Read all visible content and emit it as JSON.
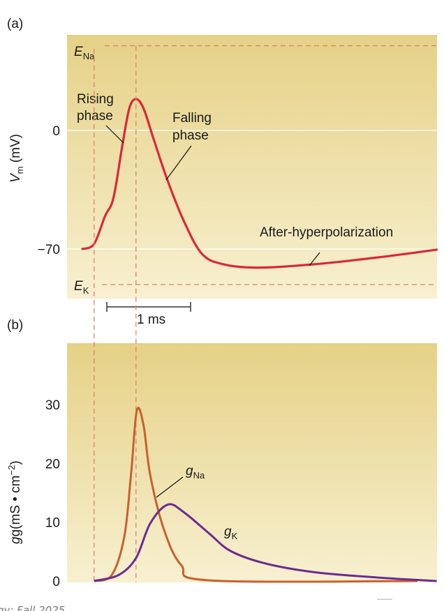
{
  "chart_data": [
    {
      "panel_label": "(a)",
      "type": "line",
      "ylabel": "V",
      "ylabel_sub": "m",
      "ylabel_unit": " (mV)",
      "yticks": [
        {
          "value": 0,
          "label": "0"
        },
        {
          "value": -70,
          "label": "−70"
        }
      ],
      "ylim": [
        -95,
        57
      ],
      "xlim_ms": [
        -0.18,
        4.23
      ],
      "grid": "horizontal at tick values",
      "reference_lines": [
        {
          "label": "E",
          "sub": "Na",
          "value": 50
        },
        {
          "label": "E",
          "sub": "K",
          "value": -91
        }
      ],
      "vertical_markers_ms": [
        0.14,
        0.64
      ],
      "scale_bar": {
        "length_ms": 1,
        "label": "1 ms"
      },
      "series": [
        {
          "color": "#d9283a",
          "x": [
            0,
            0.14,
            0.27,
            0.37,
            0.475,
            0.56,
            0.64,
            0.73,
            0.85,
            1.02,
            1.225,
            1.43,
            1.68,
            2.1,
            2.77,
            3.52,
            4.23
          ],
          "y": [
            -70,
            -67,
            -50.6,
            -40,
            -9.5,
            13,
            18.5,
            13,
            -5,
            -30,
            -55,
            -73,
            -79,
            -81,
            -79,
            -75,
            -70.4
          ]
        }
      ],
      "annotations": [
        {
          "line1": "Rising",
          "line2": "phase"
        },
        {
          "line1": "Falling",
          "line2": "phase"
        },
        {
          "line1": "After-hyperpolarization"
        }
      ]
    },
    {
      "panel_label": "(b)",
      "type": "line",
      "ylabel": "g(mS • cm",
      "ylabel_sup": "−2",
      "ylabel_end": ")",
      "yticks": [
        {
          "value": 0,
          "label": "0"
        },
        {
          "value": 10,
          "label": "10"
        },
        {
          "value": 20,
          "label": "20"
        },
        {
          "value": 30,
          "label": "30"
        }
      ],
      "ylim": [
        0,
        40.5
      ],
      "series": [
        {
          "name": "g",
          "sub": "Na",
          "color": "#c8602e",
          "x": [
            0.14,
            0.35,
            0.5,
            0.58,
            0.65,
            0.73,
            0.81,
            0.975,
            1.18,
            1.52,
            4.0
          ],
          "y": [
            0,
            1,
            7.5,
            18,
            29,
            26.5,
            18,
            8.7,
            2.7,
            0.1,
            0
          ]
        },
        {
          "name": "g",
          "sub": "K",
          "color": "#6a2c91",
          "x": [
            0.14,
            0.43,
            0.64,
            0.81,
            1.02,
            1.22,
            1.52,
            1.77,
            2.18,
            2.77,
            3.52,
            4.23
          ],
          "y": [
            0,
            1,
            3.9,
            9.8,
            13,
            11.6,
            8,
            5.1,
            3,
            1.5,
            0.6,
            0
          ]
        }
      ]
    }
  ],
  "colors": {
    "panel_top": "#e5d186",
    "panel_bottom": "#f8f0d0",
    "dashed": "#d8866a"
  },
  "footer": {
    "text": "gy: Fall 2025",
    "mark": "——"
  }
}
